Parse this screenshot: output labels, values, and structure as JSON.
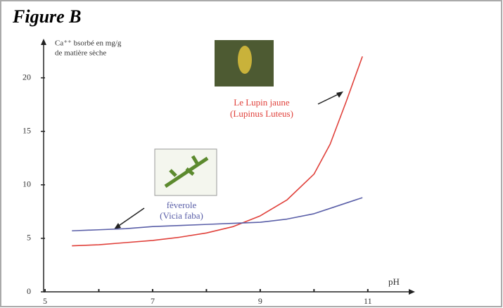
{
  "chart_data": {
    "type": "line",
    "title": "Figure B",
    "y_label": [
      "Ca⁺⁺ bsorbé en mg/g",
      "de matière sèche"
    ],
    "x_label": "pH",
    "x": [
      5.5,
      6,
      6.5,
      7,
      7.5,
      8,
      8.5,
      9,
      9.5,
      10,
      10.3,
      10.6,
      10.9
    ],
    "series": [
      {
        "name": "Le Lupin jaune",
        "subname": "(Lupinus Luteus)",
        "color": "#e0403a",
        "values": [
          4.3,
          4.4,
          4.6,
          4.8,
          5.1,
          5.5,
          6.1,
          7.1,
          8.6,
          11,
          13.8,
          17.8,
          22
        ]
      },
      {
        "name": "fèverole",
        "subname": "(Vicia faba)",
        "color": "#5a5fa8",
        "values": [
          5.7,
          5.8,
          5.9,
          6.1,
          6.2,
          6.3,
          6.4,
          6.5,
          6.8,
          7.3,
          7.8,
          8.3,
          8.8
        ]
      }
    ],
    "xlim": [
      5,
      11.8
    ],
    "xticks": [
      5,
      7,
      9,
      11
    ],
    "xminor_ticks": [
      6,
      8,
      10
    ],
    "ylim": [
      0,
      23
    ],
    "yticks": [
      0,
      5,
      10,
      15,
      20
    ]
  }
}
